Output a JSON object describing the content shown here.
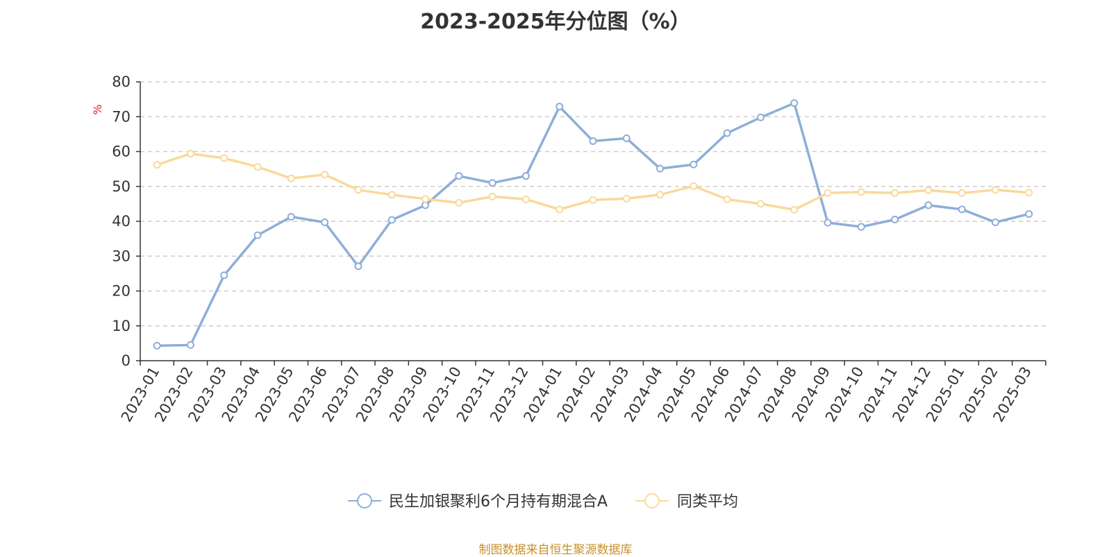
{
  "chart_data": {
    "type": "line",
    "title": "2023-2025年分位图（%）",
    "ylabel": "%",
    "xlabel": "",
    "ylim": [
      0,
      80
    ],
    "yticks": [
      0,
      10,
      20,
      30,
      40,
      50,
      60,
      70,
      80
    ],
    "grid": true,
    "legend_position": "bottom",
    "categories": [
      "2023-01",
      "2023-02",
      "2023-03",
      "2023-04",
      "2023-05",
      "2023-06",
      "2023-07",
      "2023-08",
      "2023-09",
      "2023-10",
      "2023-11",
      "2023-12",
      "2024-01",
      "2024-02",
      "2024-03",
      "2024-04",
      "2024-05",
      "2024-06",
      "2024-07",
      "2024-08",
      "2024-09",
      "2024-10",
      "2024-11",
      "2024-12",
      "2025-01",
      "2025-02",
      "2025-03"
    ],
    "series": [
      {
        "name": "民生加银聚利6个月持有期混合A",
        "color": "#8eaed8",
        "values": [
          4.3,
          4.5,
          24.5,
          36.0,
          41.3,
          39.7,
          27.1,
          40.4,
          44.6,
          53.0,
          51.0,
          53.0,
          72.9,
          63.0,
          63.8,
          55.1,
          56.3,
          65.3,
          69.8,
          73.9,
          39.6,
          38.4,
          40.5,
          44.6,
          43.4,
          39.7,
          42.1
        ]
      },
      {
        "name": "同类平均",
        "color": "#fbd89a",
        "values": [
          56.2,
          59.4,
          58.1,
          55.6,
          52.3,
          53.4,
          49.0,
          47.6,
          46.4,
          45.3,
          47.1,
          46.3,
          43.4,
          46.1,
          46.5,
          47.6,
          50.1,
          46.3,
          45.0,
          43.3,
          48.1,
          48.4,
          48.1,
          48.9,
          48.1,
          49.0,
          48.2
        ]
      }
    ]
  },
  "source_note": "制图数据来自恒生聚源数据库"
}
